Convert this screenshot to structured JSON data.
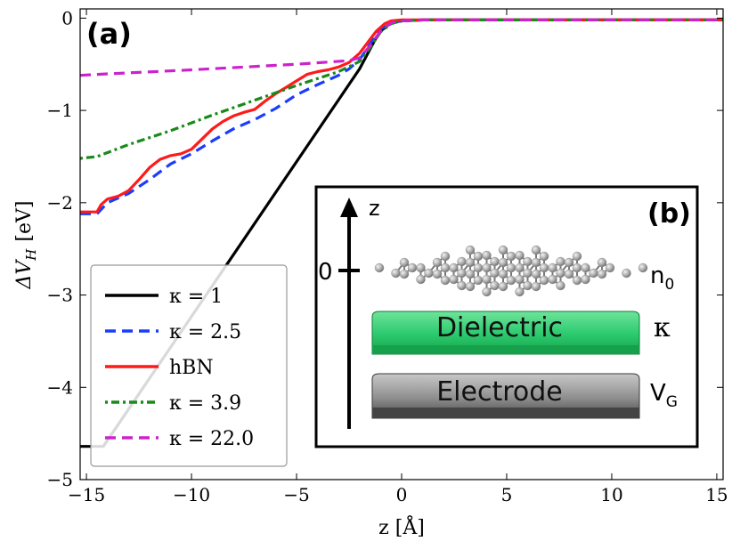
{
  "chart_data": {
    "type": "line",
    "panel_label": "(a)",
    "xlabel": "z [Å]",
    "ylabel": "ΔV_H [eV]",
    "ylabel_main": "ΔV",
    "ylabel_sub": "H",
    "ylabel_unit": "[eV]",
    "xlim": [
      -15.3,
      15.3
    ],
    "ylim": [
      -5,
      0.1
    ],
    "xticks": [
      -15,
      -10,
      -5,
      0,
      5,
      10,
      15
    ],
    "xtick_labels": [
      "−15",
      "−10",
      "−5",
      "0",
      "5",
      "10",
      "15"
    ],
    "yticks": [
      0,
      -1,
      -2,
      -3,
      -4,
      -5
    ],
    "ytick_labels": [
      "0",
      "−1",
      "−2",
      "−3",
      "−4",
      "−5"
    ],
    "legend_placement": "lower-left",
    "series": [
      {
        "name": "κ = 1",
        "legend_label": "κ = 1",
        "color": "#000000",
        "dash": "solid",
        "x": [
          -15.3,
          -14.2,
          -2.0,
          -1.3,
          -1.0,
          -0.6,
          -0.3,
          0,
          1,
          2,
          15.3
        ],
        "y": [
          -4.64,
          -4.64,
          -0.55,
          -0.25,
          -0.14,
          -0.07,
          -0.04,
          -0.03,
          -0.02,
          -0.02,
          -0.02
        ]
      },
      {
        "name": "κ = 2.5",
        "legend_label": "κ = 2.5",
        "color": "#1a3cff",
        "dash": "dashed",
        "x": [
          -15.3,
          -14.5,
          -14.0,
          -13.0,
          -12.0,
          -11.0,
          -10.0,
          -9.0,
          -8.0,
          -7.0,
          -6.0,
          -5.0,
          -4.0,
          -3.0,
          -2.5,
          -2.0,
          -1.5,
          -1.0,
          -0.5,
          0,
          1,
          15.3
        ],
        "y": [
          -2.12,
          -2.12,
          -2.0,
          -1.9,
          -1.75,
          -1.58,
          -1.47,
          -1.33,
          -1.2,
          -1.1,
          -0.98,
          -0.83,
          -0.72,
          -0.62,
          -0.55,
          -0.45,
          -0.28,
          -0.12,
          -0.05,
          -0.03,
          -0.02,
          -0.02
        ]
      },
      {
        "name": "hBN",
        "legend_label": "hBN",
        "color": "#ff1a1a",
        "dash": "solid",
        "x": [
          -15.3,
          -14.5,
          -14.3,
          -14.0,
          -13.5,
          -13.0,
          -12.5,
          -12.0,
          -11.5,
          -11.0,
          -10.5,
          -10.0,
          -9.5,
          -9.0,
          -8.5,
          -8.0,
          -7.5,
          -7.0,
          -6.5,
          -6.0,
          -5.5,
          -5.0,
          -4.5,
          -4.0,
          -3.5,
          -3.0,
          -2.5,
          -2.0,
          -1.6,
          -1.2,
          -0.8,
          -0.5,
          0,
          1,
          15.3
        ],
        "y": [
          -2.1,
          -2.1,
          -2.02,
          -1.96,
          -1.93,
          -1.87,
          -1.75,
          -1.62,
          -1.53,
          -1.49,
          -1.47,
          -1.42,
          -1.31,
          -1.2,
          -1.12,
          -1.06,
          -1.02,
          -0.99,
          -0.9,
          -0.82,
          -0.75,
          -0.68,
          -0.61,
          -0.58,
          -0.56,
          -0.53,
          -0.48,
          -0.38,
          -0.26,
          -0.14,
          -0.06,
          -0.03,
          -0.02,
          -0.02,
          -0.02
        ]
      },
      {
        "name": "κ = 3.9",
        "legend_label": "κ = 3.9",
        "color": "#1a8a1a",
        "dash": "dashdot",
        "x": [
          -15.3,
          -14.5,
          -13.0,
          -11.0,
          -9.0,
          -7.0,
          -5.0,
          -3.0,
          -2.0,
          -1.5,
          -1.0,
          -0.5,
          0,
          1,
          15.3
        ],
        "y": [
          -1.52,
          -1.5,
          -1.37,
          -1.22,
          -1.05,
          -0.89,
          -0.73,
          -0.58,
          -0.47,
          -0.32,
          -0.15,
          -0.06,
          -0.03,
          -0.02,
          -0.02
        ]
      },
      {
        "name": "κ = 22.0",
        "legend_label": "κ = 22.0",
        "color": "#cc22cc",
        "dash": "dashed",
        "x": [
          -15.3,
          -14.5,
          -10.0,
          -5.0,
          -2.5,
          -2.0,
          -1.5,
          -1.0,
          -0.5,
          0,
          1,
          15.3
        ],
        "y": [
          -0.62,
          -0.61,
          -0.56,
          -0.5,
          -0.46,
          -0.43,
          -0.3,
          -0.14,
          -0.05,
          -0.03,
          -0.02,
          -0.02
        ]
      }
    ]
  },
  "inset": {
    "panel_label": "(b)",
    "axis_label": "z",
    "zero_label": "0",
    "graphene_label": "n",
    "graphene_sub": "0",
    "dielectric_label": "Dielectric",
    "dielectric_symbol": "κ",
    "electrode_label": "Electrode",
    "electrode_symbol": "V",
    "electrode_sub": "G",
    "colors": {
      "dielectric_top": "#2ecc71",
      "dielectric_bottom": "#17a34a",
      "electrode_top": "#9a9a9a",
      "electrode_bottom": "#555555",
      "atom": "#9a9a9a"
    }
  }
}
